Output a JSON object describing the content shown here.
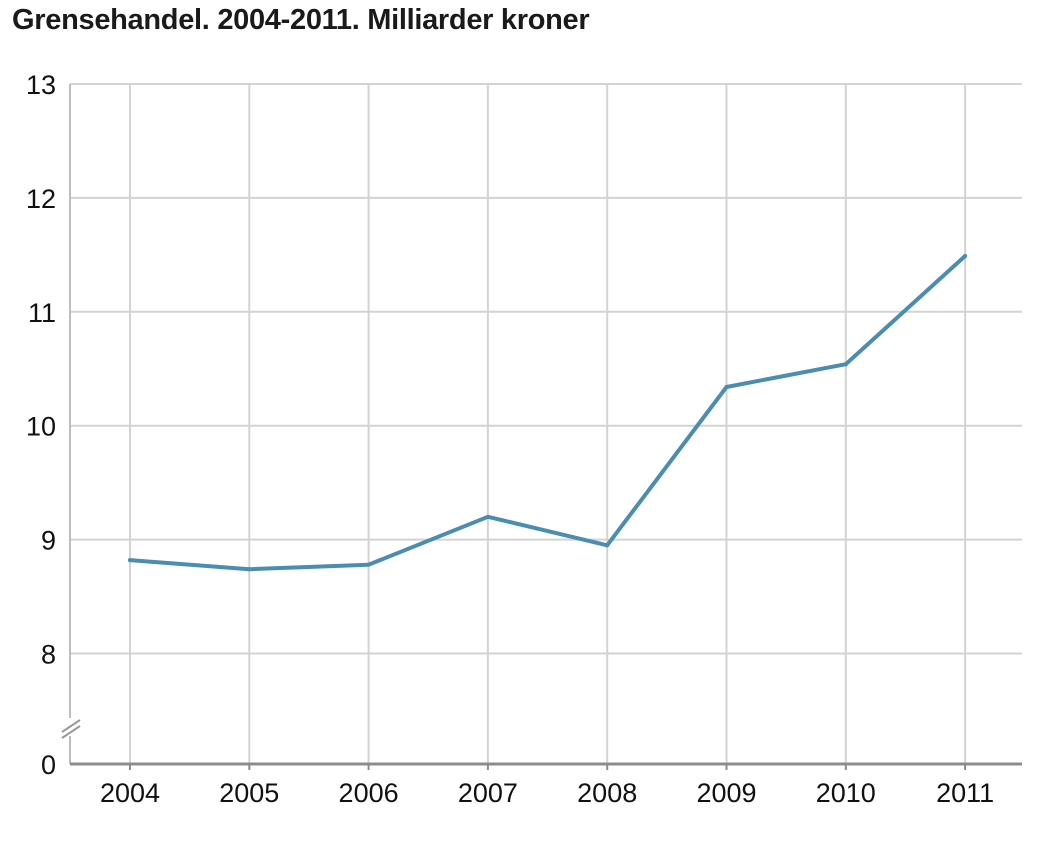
{
  "chart_data": {
    "type": "line",
    "title": "Grensehandel. 2004-2011. Milliarder kroner",
    "xlabel": "",
    "ylabel": "",
    "categories": [
      "2004",
      "2005",
      "2006",
      "2007",
      "2008",
      "2009",
      "2010",
      "2011"
    ],
    "series": [
      {
        "values": [
          8.82,
          8.74,
          8.78,
          9.2,
          8.95,
          10.34,
          10.54,
          11.49
        ]
      }
    ],
    "y_ticks": [
      "0",
      "8",
      "9",
      "10",
      "11",
      "12",
      "13"
    ],
    "ylim": [
      7.03,
      13
    ],
    "y_axis_break": true,
    "grid": true,
    "line_color": "#4a8db0"
  }
}
